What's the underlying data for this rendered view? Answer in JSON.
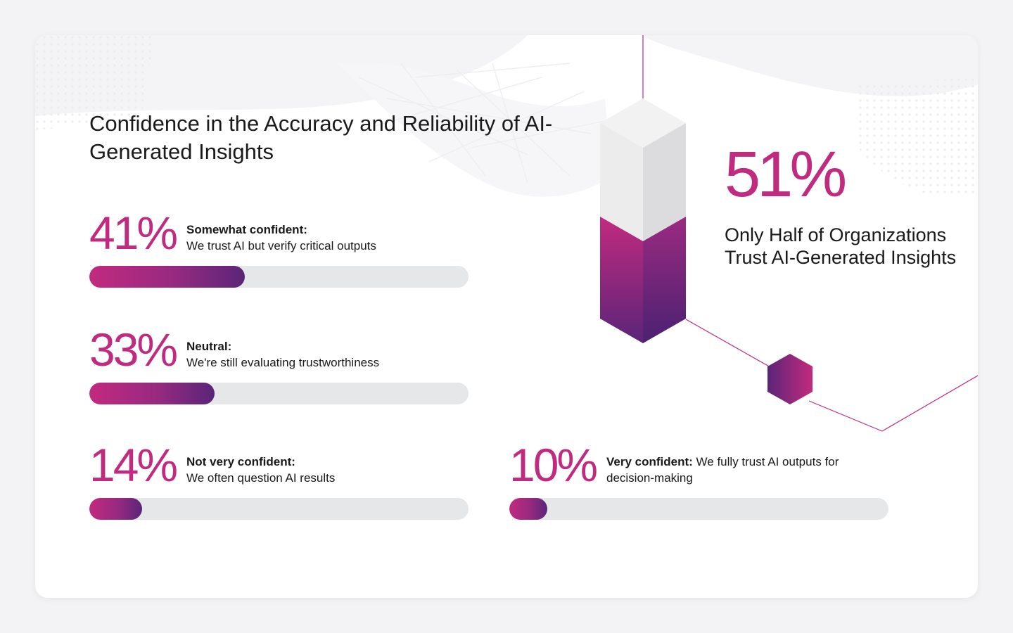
{
  "title": "Confidence in the Accuracy and Reliability of AI-Generated Insights",
  "highlight": {
    "value": 51,
    "percent_text": "51%",
    "label": "Only Half of Organizations Trust AI-Generated Insights"
  },
  "colors": {
    "accent": "#c02a7f",
    "gradient_start": "#c22a7f",
    "gradient_end": "#5a2578",
    "track": "#e6e7e9",
    "text": "#1a1a1a"
  },
  "chart_data": {
    "type": "bar",
    "orientation": "horizontal",
    "value_range": [
      0,
      100
    ],
    "items": [
      {
        "value": 41,
        "percent_text": "41%",
        "label_bold": "Somewhat confident:",
        "label_text": "We trust AI but verify critical outputs"
      },
      {
        "value": 33,
        "percent_text": "33%",
        "label_bold": "Neutral:",
        "label_text": "We're still evaluating trustworthiness"
      },
      {
        "value": 14,
        "percent_text": "14%",
        "label_bold": "Not very confident:",
        "label_text": "We often question AI results"
      },
      {
        "value": 10,
        "percent_text": "10%",
        "label_bold": "Very confident:",
        "label_text": "We fully trust AI outputs for decision-making"
      }
    ]
  }
}
